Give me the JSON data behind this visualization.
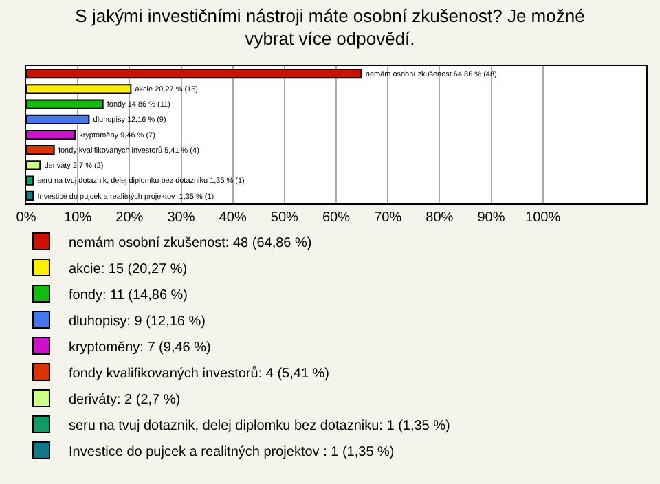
{
  "chart_data": {
    "type": "bar",
    "orientation": "horizontal",
    "stacked": false,
    "title": "S jakými investičními nástroji máte osobní zkušenost? Je možné\nvybrat více odpovědí.",
    "categories": [
      null,
      null,
      null,
      null,
      null,
      null,
      null,
      null,
      null
    ],
    "series": [
      {
        "name": "nemám osobní zkušenost: 48 (64,86 %)",
        "color": "#cc1100",
        "values": [
          64.86,
          null,
          null,
          null,
          null,
          null,
          null,
          null,
          null
        ],
        "value_labels": [
          "nemám osobní zkušenost 64,86 % (48)",
          null,
          null,
          null,
          null,
          null,
          null,
          null,
          null
        ]
      },
      {
        "name": "akcie: 15 (20,27 %)",
        "color": "#ffee00",
        "values": [
          null,
          20.27,
          null,
          null,
          null,
          null,
          null,
          null,
          null
        ],
        "value_labels": [
          null,
          "akcie 20,27 % (15)",
          null,
          null,
          null,
          null,
          null,
          null,
          null
        ]
      },
      {
        "name": "fondy: 11 (14,86 %)",
        "color": "#11bb11",
        "values": [
          null,
          null,
          14.86,
          null,
          null,
          null,
          null,
          null,
          null
        ],
        "value_labels": [
          null,
          null,
          "fondy 14,86 % (11)",
          null,
          null,
          null,
          null,
          null,
          null
        ]
      },
      {
        "name": "dluhopisy: 9 (12,16 %)",
        "color": "#4477ee",
        "values": [
          null,
          null,
          null,
          12.16,
          null,
          null,
          null,
          null,
          null
        ],
        "value_labels": [
          null,
          null,
          null,
          "dluhopisy 12,16 % (9)",
          null,
          null,
          null,
          null,
          null
        ]
      },
      {
        "name": "kryptoměny: 7 (9,46 %)",
        "color": "#cc11cc",
        "values": [
          null,
          null,
          null,
          null,
          9.46,
          null,
          null,
          null,
          null
        ],
        "value_labels": [
          null,
          null,
          null,
          null,
          "kryptoměny 9,46 % (7)",
          null,
          null,
          null,
          null
        ]
      },
      {
        "name": "fondy kvalifikovaných investorů: 4 (5,41 %)",
        "color": "#dd3300",
        "values": [
          null,
          null,
          null,
          null,
          null,
          5.41,
          null,
          null,
          null
        ],
        "value_labels": [
          null,
          null,
          null,
          null,
          null,
          "fondy kvalifikovaných investorů 5,41 % (4)",
          null,
          null,
          null
        ]
      },
      {
        "name": "deriváty: 2 (2,7 %)",
        "color": "#ccff88",
        "values": [
          null,
          null,
          null,
          null,
          null,
          null,
          2.7,
          null,
          null
        ],
        "value_labels": [
          null,
          null,
          null,
          null,
          null,
          null,
          "deriváty 2,7 % (2)",
          null,
          null
        ]
      },
      {
        "name": "seru na tvuj dotaznik, delej diplomku bez dotazniku: 1 (1,35 %)",
        "color": "#119966",
        "values": [
          null,
          null,
          null,
          null,
          null,
          null,
          null,
          1.35,
          null
        ],
        "value_labels": [
          null,
          null,
          null,
          null,
          null,
          null,
          null,
          "seru na tvuj dotaznik, delej diplomku bez dotazniku 1,35 % (1)",
          null
        ]
      },
      {
        "name": "Investice do pujcek a realitných projektov : 1 (1,35 %)",
        "color": "#117788",
        "values": [
          null,
          null,
          null,
          null,
          null,
          null,
          null,
          null,
          1.35
        ],
        "value_labels": [
          null,
          null,
          null,
          null,
          null,
          null,
          null,
          null,
          "Investice do pujcek a realitných projektov  1,35 % (1)"
        ]
      }
    ],
    "xlim": [
      0,
      120
    ],
    "xticks": [
      {
        "value": 0,
        "label": "0%"
      },
      {
        "value": 10,
        "label": "10%"
      },
      {
        "value": 20,
        "label": "20%"
      },
      {
        "value": 30,
        "label": "30%"
      },
      {
        "value": 40,
        "label": "40%"
      },
      {
        "value": 50,
        "label": "50%"
      },
      {
        "value": 60,
        "label": "60%"
      },
      {
        "value": 70,
        "label": "70%"
      },
      {
        "value": 80,
        "label": "80%"
      },
      {
        "value": 90,
        "label": "90%"
      },
      {
        "value": 100,
        "label": "100%"
      }
    ],
    "grid": "x",
    "legend": "bottom",
    "tick_labels": "x"
  }
}
